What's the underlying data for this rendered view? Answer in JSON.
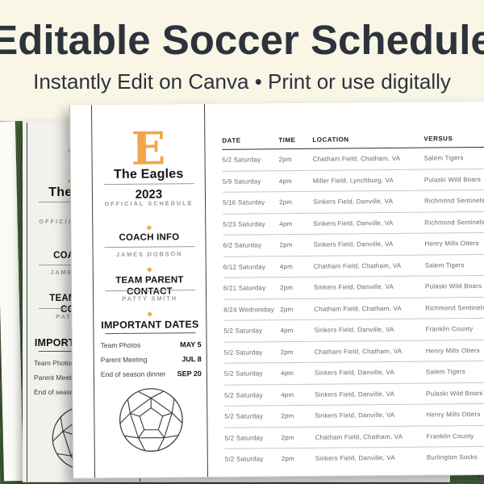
{
  "banner": {
    "title": "Editable Soccer Schedule",
    "subtitle": "Instantly Edit on Canva • Print or use digitally"
  },
  "colors": {
    "accent_orange": "#F2A64A",
    "banner_bg": "#F9F6E6",
    "title_text": "#2C333C",
    "grass_green": "#4A673F",
    "page_white": "#FFFFFF",
    "back_page_gray": "#F1F1EE"
  },
  "icons": {
    "diamond": "◆",
    "soccer_ball": "soccer-ball-line-art"
  },
  "document": {
    "team_initial": "E",
    "team_name": "The Eagles",
    "year": "2023",
    "schedule_label": "OFFICIAL SCHEDULE",
    "coach_heading": "COACH INFO",
    "coach_name": "JAMES DOBSON",
    "parent_heading": "TEAM PARENT CONTACT",
    "parent_name": "PATTY SMITH",
    "important_heading": "IMPORTANT DATES",
    "important_dates": [
      {
        "label": "Team Photos",
        "date": "MAY 5"
      },
      {
        "label": "Parent Meeting",
        "date": "JUL 8"
      },
      {
        "label": "End of season dinner",
        "date": "SEP 20"
      }
    ],
    "table": {
      "headers": [
        "DATE",
        "TIME",
        "LOCATION",
        "VERSUS"
      ],
      "rows": [
        [
          "5/2 Saturday",
          "2pm",
          "Chatham Field, Chatham, VA",
          "Salem Tigers"
        ],
        [
          "5/9 Saturday",
          "4pm",
          "Miller Field, Lynchburg, VA",
          "Pulaski Wild Boars"
        ],
        [
          "5/16 Saturday",
          "2pm",
          "Sinkers Field, Danville, VA",
          "Richmond Sentinels"
        ],
        [
          "5/23 Saturday",
          "4pm",
          "Sinkers Field, Danville, VA",
          "Richmond Sentinels"
        ],
        [
          "6/2 Saturday",
          "2pm",
          "Sinkers Field, Danville, VA",
          "Henry Mills Otters"
        ],
        [
          "6/12 Saturday",
          "4pm",
          "Chatham Field, Chatham, VA",
          "Salem Tigers"
        ],
        [
          "6/21 Saturday",
          "2pm",
          "Sinkers Field, Danville, VA",
          "Pulaski Wild Boars"
        ],
        [
          "6/24 Wednesday",
          "2pm",
          "Chatham Field, Chatham, VA",
          "Richmond Sentinels"
        ],
        [
          "5/2 Saturday",
          "4pm",
          "Sinkers Field, Danville, VA",
          "Franklin County"
        ],
        [
          "5/2 Saturday",
          "2pm",
          "Chatham Field, Chatham, VA",
          "Henry Mills Otters"
        ],
        [
          "5/2 Saturday",
          "4pm",
          "Sinkers Field, Danville, VA",
          "Salem Tigers"
        ],
        [
          "5/2 Saturday",
          "4pm",
          "Sinkers Field, Danville, VA",
          "Pulaski Wild Boars"
        ],
        [
          "5/2 Saturday",
          "2pm",
          "Sinkers Field, Danville, VA",
          "Henry Mills Otters"
        ],
        [
          "5/2 Saturday",
          "2pm",
          "Chatham Field, Chatham, VA",
          "Franklin County"
        ],
        [
          "5/2 Saturday",
          "2pm",
          "Sinkers Field, Danville, VA",
          "Burlington Socks"
        ]
      ]
    }
  }
}
